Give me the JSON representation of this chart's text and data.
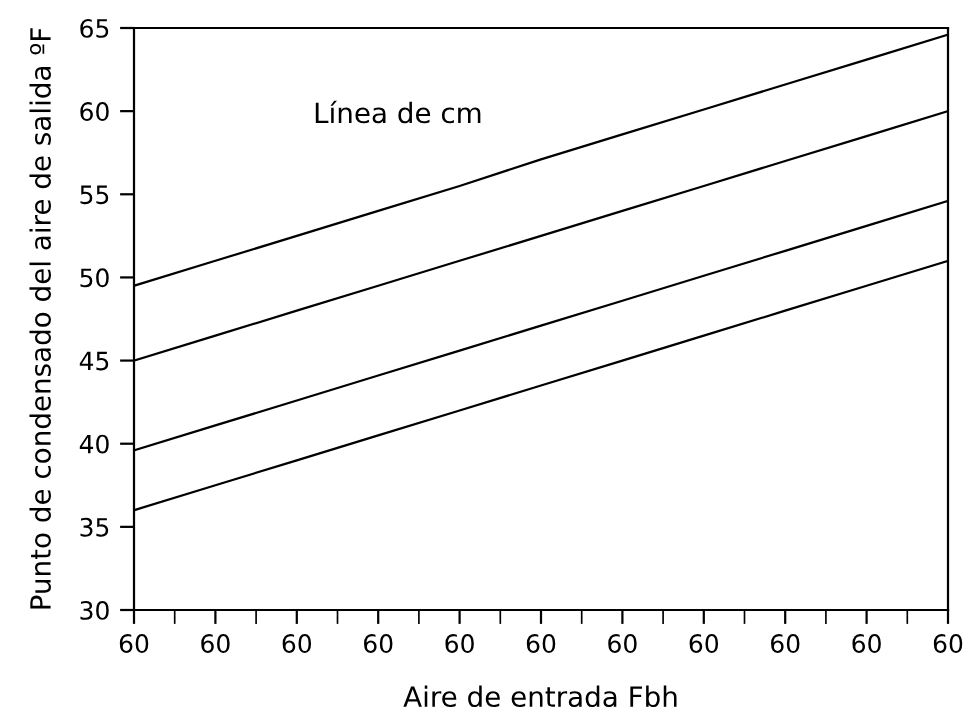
{
  "chart_data": {
    "type": "line",
    "xlabel": "Aire de entrada Fbh",
    "ylabel": "Punto de condensado del aire de salida ºF",
    "annotations": [
      "Línea de cm"
    ],
    "categories": [
      "60",
      "60",
      "60",
      "60",
      "60",
      "60",
      "60",
      "60",
      "60",
      "60",
      "60"
    ],
    "series": [
      {
        "color": "#000000",
        "values": [
          49.5,
          51.0,
          52.5,
          54.0,
          55.5,
          57.1,
          58.6,
          60.1,
          61.6,
          63.1,
          64.6
        ]
      },
      {
        "color": "#000000",
        "values": [
          45.0,
          46.5,
          48.0,
          49.5,
          51.0,
          52.5,
          54.0,
          55.5,
          57.0,
          58.5,
          60.0
        ]
      },
      {
        "color": "#000000",
        "values": [
          39.6,
          41.1,
          42.6,
          44.1,
          45.6,
          47.1,
          48.6,
          50.1,
          51.6,
          53.1,
          54.6
        ]
      },
      {
        "color": "#000000",
        "values": [
          36.0,
          37.5,
          39.0,
          40.5,
          42.0,
          43.5,
          45.0,
          46.5,
          48.0,
          49.5,
          51.0
        ]
      }
    ],
    "ylim": [
      30,
      65
    ],
    "yticks": [
      30,
      35,
      40,
      45,
      50,
      55,
      60,
      65
    ],
    "grid": false,
    "marker": "none",
    "line_style": "solid"
  }
}
